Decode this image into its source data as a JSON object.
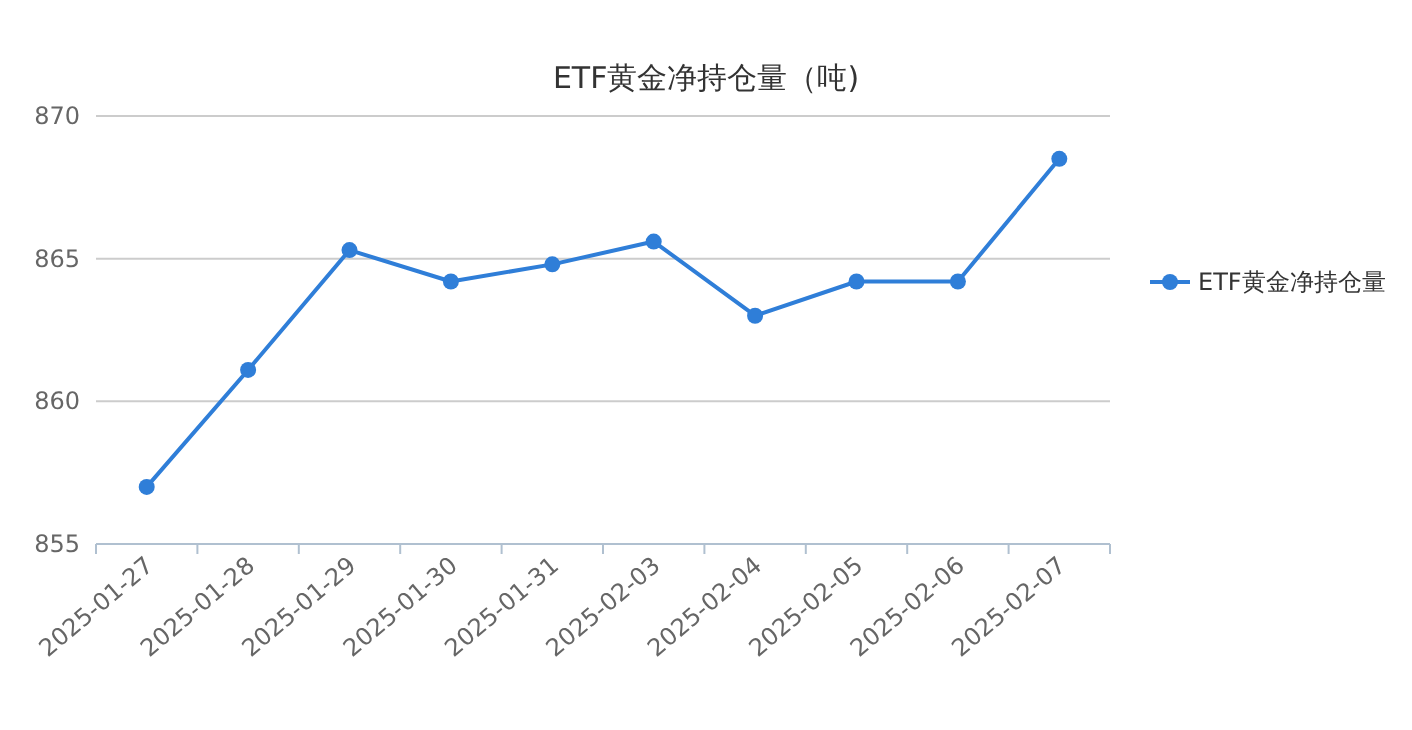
{
  "chart_data": {
    "type": "line",
    "title": "ETF黄金净持仓量（吨)",
    "categories": [
      "2025-01-27",
      "2025-01-28",
      "2025-01-29",
      "2025-01-30",
      "2025-01-31",
      "2025-02-03",
      "2025-02-04",
      "2025-02-05",
      "2025-02-06",
      "2025-02-07"
    ],
    "series": [
      {
        "name": "ETF黄金净持仓量",
        "color": "#2f7ed8",
        "values": [
          857.0,
          861.1,
          865.3,
          864.2,
          864.8,
          865.6,
          863.0,
          864.2,
          864.2,
          868.5
        ]
      }
    ],
    "ylim": [
      855,
      870
    ],
    "yticks": [
      855,
      860,
      865,
      870
    ],
    "grid": "y",
    "legend": "right",
    "marker": "circle",
    "line_style": "solid"
  }
}
